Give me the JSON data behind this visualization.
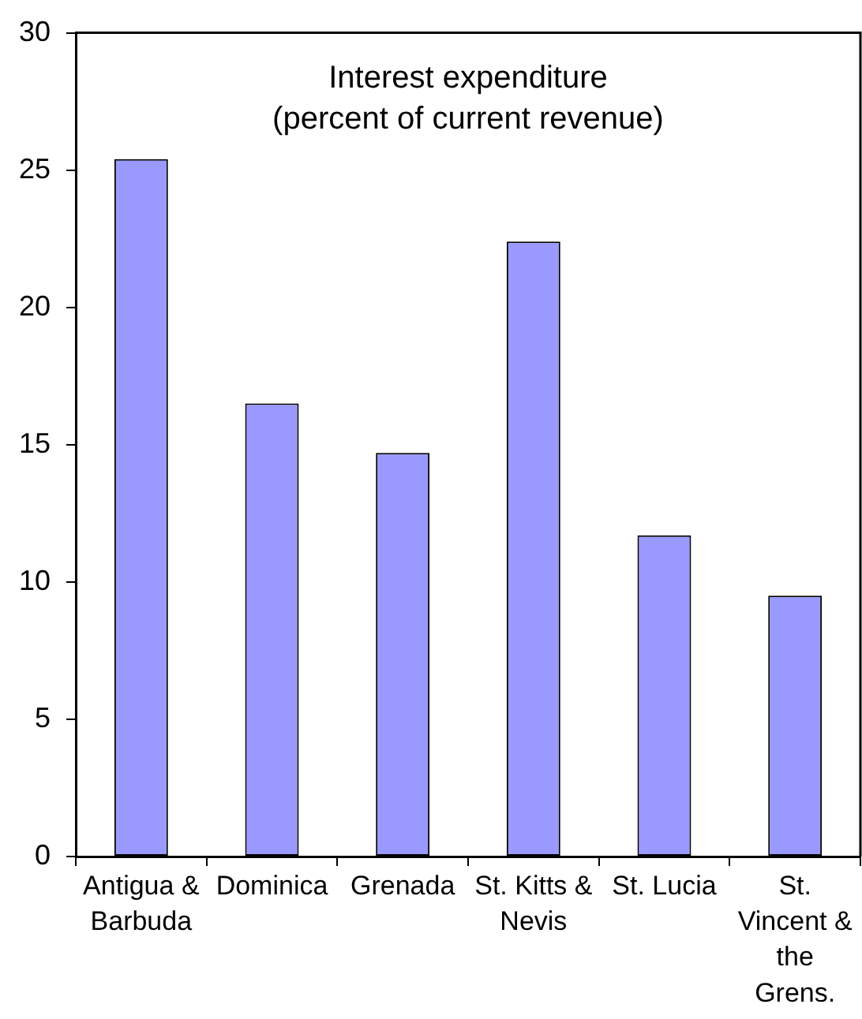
{
  "chart_data": {
    "type": "bar",
    "title": "Interest expenditure",
    "subtitle": "(percent of current revenue)",
    "categories": [
      "Antigua & Barbuda",
      "Dominica",
      "Grenada",
      "St. Kitts & Nevis",
      "St. Lucia",
      "St. Vincent & the Grens."
    ],
    "values": [
      25.4,
      16.5,
      14.7,
      22.4,
      11.7,
      9.5
    ],
    "color": "#9999ff",
    "ylim": [
      0,
      30
    ],
    "yticks": [
      0,
      5,
      10,
      15,
      20,
      25,
      30
    ]
  }
}
